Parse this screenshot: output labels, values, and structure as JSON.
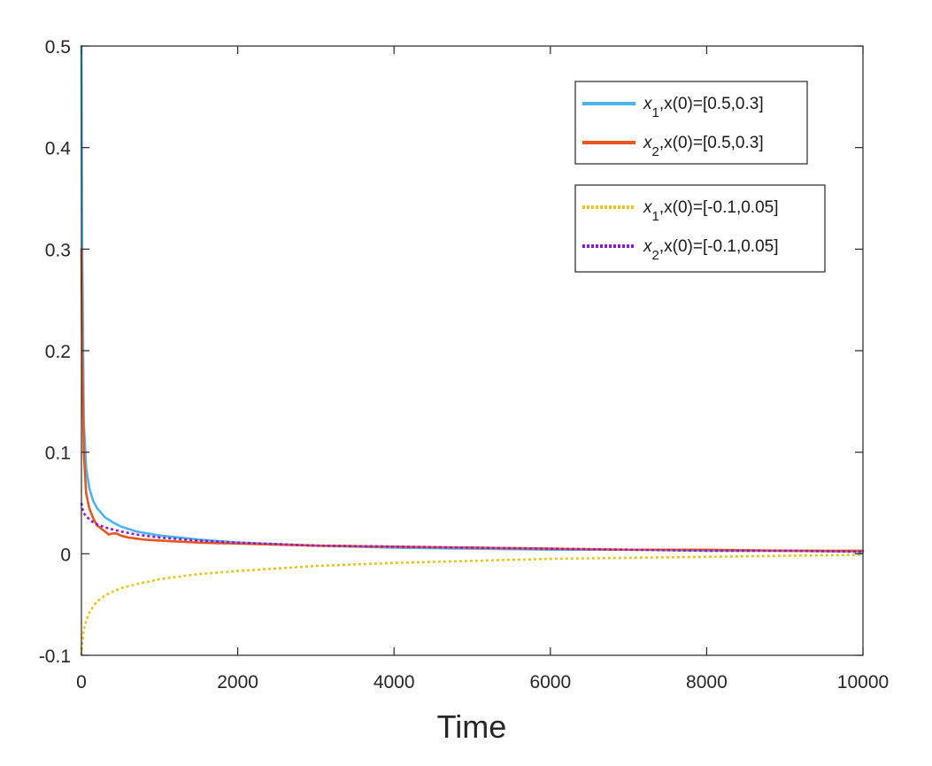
{
  "chart_data": {
    "type": "line",
    "title": "",
    "xlabel": "Time",
    "ylabel": "",
    "xlim": [
      0,
      10000
    ],
    "ylim": [
      -0.1,
      0.5
    ],
    "xticks": [
      0,
      2000,
      4000,
      6000,
      8000,
      10000
    ],
    "xtick_labels": [
      "0",
      "2000",
      "4000",
      "6000",
      "8000",
      "10000"
    ],
    "yticks": [
      -0.1,
      0,
      0.1,
      0.2,
      0.3,
      0.4,
      0.5
    ],
    "ytick_labels": [
      "-0.1",
      "0",
      "0.1",
      "0.2",
      "0.3",
      "0.4",
      "0.5"
    ],
    "grid": false,
    "legends": [
      {
        "placement": "top-right",
        "entries": [
          {
            "var": "x",
            "sub": "1",
            "text": ",x(0)=[0.5,0.3]"
          },
          {
            "var": "x",
            "sub": "2",
            "text": ",x(0)=[0.5,0.3]"
          }
        ]
      },
      {
        "placement": "upper-right",
        "entries": [
          {
            "var": "x",
            "sub": "1",
            "text": ",x(0)=[-0.1,0.05]"
          },
          {
            "var": "x",
            "sub": "2",
            "text": ",x(0)=[-0.1,0.05]"
          }
        ]
      }
    ],
    "series": [
      {
        "label": "x1, x(0)=[0.5,0.3]",
        "color": "#4db3ed",
        "style": "solid",
        "x": [
          0,
          10,
          30,
          60,
          100,
          150,
          200,
          300,
          400,
          500,
          700,
          1000,
          1500,
          2000,
          3000,
          4000,
          5000,
          6000,
          7000,
          8000,
          9000,
          10000
        ],
        "y": [
          0.5,
          0.3,
          0.13,
          0.085,
          0.065,
          0.052,
          0.045,
          0.036,
          0.031,
          0.027,
          0.022,
          0.018,
          0.014,
          0.011,
          0.008,
          0.006,
          0.005,
          0.004,
          0.004,
          0.003,
          0.003,
          0.002
        ]
      },
      {
        "label": "x2, x(0)=[0.5,0.3]",
        "color": "#e8561e",
        "style": "solid",
        "x": [
          0,
          10,
          30,
          60,
          100,
          150,
          200,
          300,
          350,
          400,
          450,
          500,
          600,
          800,
          1000,
          1500,
          2000,
          3000,
          4000,
          5000,
          6000,
          7000,
          8000,
          9000,
          10000
        ],
        "y": [
          0.3,
          0.2,
          0.1,
          0.06,
          0.045,
          0.035,
          0.028,
          0.022,
          0.019,
          0.02,
          0.02,
          0.018,
          0.016,
          0.014,
          0.013,
          0.011,
          0.01,
          0.008,
          0.007,
          0.006,
          0.005,
          0.004,
          0.004,
          0.003,
          0.003
        ]
      },
      {
        "label": "x1, x(0)=[-0.1,0.05]",
        "color": "#ecc31c",
        "style": "dotted",
        "x": [
          0,
          10,
          30,
          60,
          100,
          150,
          200,
          300,
          500,
          700,
          1000,
          1500,
          2000,
          3000,
          4000,
          5000,
          6000,
          7000,
          8000,
          9000,
          10000
        ],
        "y": [
          -0.1,
          -0.088,
          -0.075,
          -0.066,
          -0.058,
          -0.052,
          -0.047,
          -0.041,
          -0.034,
          -0.03,
          -0.025,
          -0.02,
          -0.017,
          -0.012,
          -0.009,
          -0.007,
          -0.005,
          -0.004,
          -0.003,
          -0.002,
          -0.001
        ]
      },
      {
        "label": "x2, x(0)=[-0.1,0.05]",
        "color": "#8a1bd8",
        "style": "dotted",
        "x": [
          0,
          10,
          30,
          60,
          100,
          150,
          200,
          300,
          500,
          700,
          1000,
          1500,
          2000,
          3000,
          4000,
          5000,
          6000,
          7000,
          8000,
          9000,
          10000
        ],
        "y": [
          0.05,
          0.045,
          0.04,
          0.037,
          0.034,
          0.031,
          0.029,
          0.026,
          0.022,
          0.019,
          0.016,
          0.013,
          0.011,
          0.008,
          0.007,
          0.006,
          0.005,
          0.004,
          0.003,
          0.003,
          0.002
        ]
      }
    ]
  }
}
